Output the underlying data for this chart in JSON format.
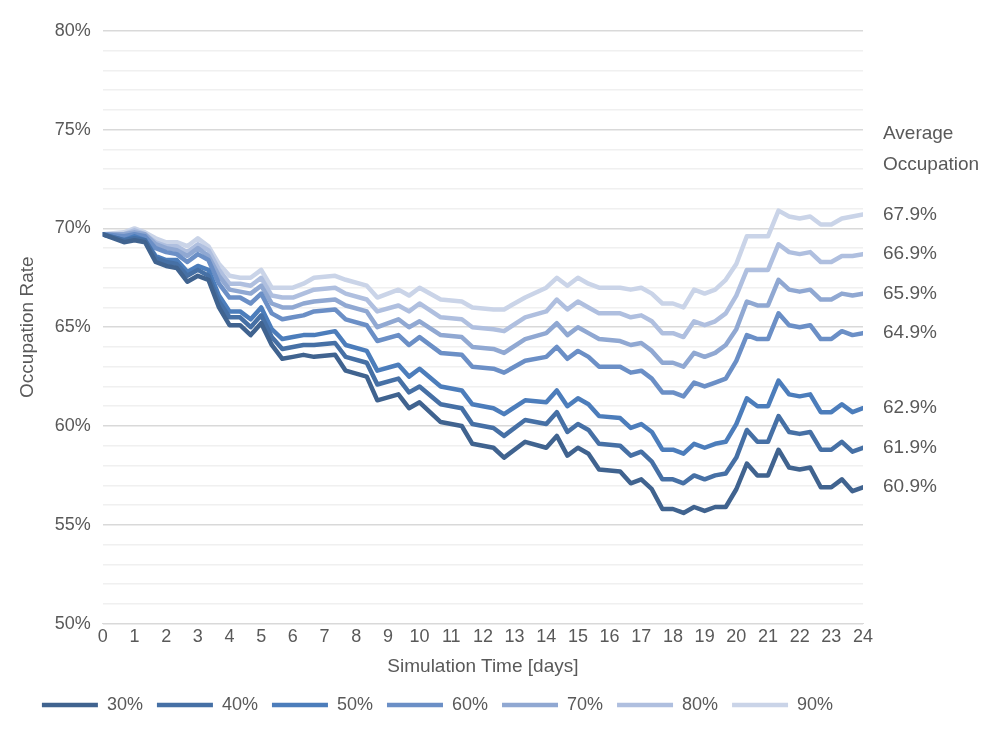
{
  "chart_data": {
    "type": "line",
    "xlabel": "Simulation Time [days]",
    "ylabel": "Occupation Rate",
    "x": [
      0,
      0.667,
      1,
      1.333,
      1.667,
      2,
      2.333,
      2.667,
      3,
      3.333,
      3.667,
      4,
      4.333,
      4.667,
      5,
      5.333,
      5.667,
      6,
      6.333,
      6.667,
      7.333,
      7.667,
      8.333,
      8.667,
      9.333,
      9.667,
      10,
      10.667,
      11.333,
      11.667,
      12.333,
      12.667,
      13.333,
      14,
      14.333,
      14.667,
      15,
      15.333,
      15.667,
      16.333,
      16.667,
      17,
      17.333,
      17.667,
      18,
      18.333,
      18.667,
      19,
      19.333,
      19.667,
      20,
      20.333,
      20.667,
      21,
      21.333,
      21.667,
      22,
      22.333,
      22.667,
      23,
      23.333,
      23.667,
      24
    ],
    "series": [
      {
        "name": "30%",
        "color": "#40638f",
        "values": [
          69.7,
          69.3,
          69.4,
          69.3,
          68.3,
          68.1,
          68.0,
          67.3,
          67.6,
          67.4,
          66.0,
          65.1,
          65.1,
          64.6,
          65.2,
          64.1,
          63.4,
          63.5,
          63.6,
          63.5,
          63.6,
          62.8,
          62.5,
          61.3,
          61.6,
          60.9,
          61.2,
          60.2,
          60.0,
          59.1,
          58.9,
          58.4,
          59.2,
          58.9,
          59.5,
          58.5,
          58.9,
          58.6,
          57.8,
          57.7,
          57.1,
          57.3,
          56.8,
          55.8,
          55.8,
          55.6,
          55.9,
          55.7,
          55.9,
          55.9,
          56.8,
          58.1,
          57.5,
          57.5,
          58.8,
          57.9,
          57.8,
          57.9,
          56.9,
          56.9,
          57.3,
          56.7,
          56.9
        ]
      },
      {
        "name": "40%",
        "color": "#4670a5",
        "values": [
          69.7,
          69.4,
          69.5,
          69.4,
          68.5,
          68.3,
          68.2,
          67.6,
          67.9,
          67.6,
          66.3,
          65.5,
          65.5,
          65.0,
          65.6,
          64.5,
          63.9,
          64.0,
          64.1,
          64.1,
          64.2,
          63.5,
          63.2,
          62.1,
          62.4,
          61.7,
          62.0,
          61.1,
          60.9,
          60.1,
          59.9,
          59.5,
          60.3,
          60.1,
          60.7,
          59.7,
          60.1,
          59.8,
          59.1,
          59.0,
          58.5,
          58.7,
          58.2,
          57.3,
          57.3,
          57.1,
          57.5,
          57.3,
          57.5,
          57.6,
          58.4,
          59.8,
          59.2,
          59.2,
          60.5,
          59.7,
          59.6,
          59.7,
          58.8,
          58.8,
          59.2,
          58.7,
          58.9
        ]
      },
      {
        "name": "50%",
        "color": "#4c7dbb",
        "values": [
          69.7,
          69.4,
          69.6,
          69.4,
          68.6,
          68.4,
          68.4,
          67.8,
          68.1,
          67.9,
          66.6,
          65.8,
          65.8,
          65.4,
          66.0,
          64.9,
          64.4,
          64.5,
          64.6,
          64.6,
          64.8,
          64.1,
          63.8,
          62.8,
          63.1,
          62.5,
          62.9,
          62.0,
          61.8,
          61.1,
          60.9,
          60.6,
          61.3,
          61.2,
          61.8,
          61.0,
          61.4,
          61.1,
          60.5,
          60.4,
          59.9,
          60.1,
          59.7,
          58.8,
          58.8,
          58.6,
          59.1,
          58.9,
          59.1,
          59.2,
          60.1,
          61.4,
          61.0,
          61.0,
          62.3,
          61.6,
          61.5,
          61.6,
          60.7,
          60.7,
          61.1,
          60.7,
          60.9
        ]
      },
      {
        "name": "60%",
        "color": "#6b8fc6",
        "values": [
          69.7,
          69.6,
          69.7,
          69.6,
          69.0,
          68.8,
          68.7,
          68.3,
          68.7,
          68.4,
          67.2,
          66.5,
          66.5,
          66.2,
          66.7,
          65.7,
          65.4,
          65.5,
          65.6,
          65.8,
          65.9,
          65.4,
          65.1,
          64.3,
          64.6,
          64.1,
          64.5,
          63.7,
          63.6,
          63.0,
          62.9,
          62.7,
          63.3,
          63.5,
          64.0,
          63.4,
          63.8,
          63.5,
          63.0,
          63.0,
          62.7,
          62.8,
          62.4,
          61.7,
          61.7,
          61.5,
          62.2,
          62.0,
          62.2,
          62.4,
          63.3,
          64.6,
          64.4,
          64.4,
          65.7,
          65.1,
          65.0,
          65.1,
          64.4,
          64.4,
          64.8,
          64.6,
          64.7
        ]
      },
      {
        "name": "70%",
        "color": "#90a8d2",
        "values": [
          69.7,
          69.7,
          69.8,
          69.7,
          69.2,
          69.0,
          68.9,
          68.6,
          69.0,
          68.6,
          67.6,
          66.9,
          66.8,
          66.7,
          67.1,
          66.2,
          66.0,
          66.0,
          66.2,
          66.3,
          66.4,
          66.1,
          65.8,
          65.0,
          65.4,
          65.0,
          65.3,
          64.6,
          64.5,
          64.0,
          63.9,
          63.7,
          64.4,
          64.7,
          65.2,
          64.6,
          65.0,
          64.7,
          64.4,
          64.3,
          64.1,
          64.2,
          63.8,
          63.2,
          63.2,
          63.0,
          63.7,
          63.5,
          63.7,
          64.1,
          64.9,
          66.3,
          66.1,
          66.1,
          67.4,
          66.9,
          66.8,
          66.9,
          66.4,
          66.4,
          66.7,
          66.6,
          66.7
        ]
      },
      {
        "name": "80%",
        "color": "#afbfdf",
        "values": [
          69.7,
          69.7,
          69.9,
          69.7,
          69.3,
          69.1,
          69.1,
          68.8,
          69.2,
          68.9,
          67.9,
          67.2,
          67.2,
          67.1,
          67.5,
          66.6,
          66.5,
          66.5,
          66.7,
          66.9,
          67.0,
          66.7,
          66.4,
          65.8,
          66.1,
          65.8,
          66.2,
          65.5,
          65.4,
          65.0,
          64.9,
          64.8,
          65.5,
          65.8,
          66.4,
          65.9,
          66.3,
          66.0,
          65.7,
          65.7,
          65.5,
          65.6,
          65.3,
          64.7,
          64.7,
          64.5,
          65.3,
          65.1,
          65.3,
          65.7,
          66.6,
          67.9,
          67.9,
          67.9,
          69.2,
          68.8,
          68.7,
          68.8,
          68.3,
          68.3,
          68.6,
          68.6,
          68.7
        ]
      },
      {
        "name": "90%",
        "color": "#cad4e8",
        "values": [
          69.7,
          69.8,
          70.0,
          69.8,
          69.5,
          69.3,
          69.3,
          69.1,
          69.5,
          69.1,
          68.2,
          67.6,
          67.5,
          67.5,
          67.9,
          67.0,
          67.0,
          67.0,
          67.2,
          67.5,
          67.6,
          67.4,
          67.1,
          66.5,
          66.9,
          66.6,
          67.0,
          66.4,
          66.3,
          66.0,
          65.9,
          65.9,
          66.5,
          67.0,
          67.5,
          67.1,
          67.5,
          67.2,
          67.0,
          67.0,
          66.9,
          67.0,
          66.7,
          66.2,
          66.2,
          66.0,
          66.9,
          66.7,
          66.9,
          67.4,
          68.2,
          69.6,
          69.6,
          69.6,
          70.9,
          70.6,
          70.5,
          70.6,
          70.2,
          70.2,
          70.5,
          70.6,
          70.7
        ]
      }
    ],
    "xlim": [
      0,
      24
    ],
    "xticks": [
      0,
      1,
      2,
      3,
      4,
      5,
      6,
      7,
      8,
      9,
      10,
      11,
      12,
      13,
      14,
      15,
      16,
      17,
      18,
      19,
      20,
      21,
      22,
      23,
      24
    ],
    "ylim": [
      50,
      80
    ],
    "yticks": [
      {
        "value": 50,
        "label": "50%"
      },
      {
        "value": 51,
        "label": null
      },
      {
        "value": 52,
        "label": null
      },
      {
        "value": 53,
        "label": null
      },
      {
        "value": 54,
        "label": null
      },
      {
        "value": 55,
        "label": "55%"
      },
      {
        "value": 56,
        "label": null
      },
      {
        "value": 57,
        "label": null
      },
      {
        "value": 58,
        "label": null
      },
      {
        "value": 59,
        "label": null
      },
      {
        "value": 60,
        "label": "60%"
      },
      {
        "value": 61,
        "label": null
      },
      {
        "value": 62,
        "label": null
      },
      {
        "value": 63,
        "label": null
      },
      {
        "value": 64,
        "label": null
      },
      {
        "value": 65,
        "label": "65%"
      },
      {
        "value": 66,
        "label": null
      },
      {
        "value": 67,
        "label": null
      },
      {
        "value": 68,
        "label": null
      },
      {
        "value": 69,
        "label": null
      },
      {
        "value": 70,
        "label": "70%"
      },
      {
        "value": 71,
        "label": null
      },
      {
        "value": 72,
        "label": null
      },
      {
        "value": 73,
        "label": null
      },
      {
        "value": 74,
        "label": null
      },
      {
        "value": 75,
        "label": "75%"
      },
      {
        "value": 76,
        "label": null
      },
      {
        "value": 77,
        "label": null
      },
      {
        "value": 78,
        "label": null
      },
      {
        "value": 79,
        "label": null
      },
      {
        "value": 80,
        "label": "80%"
      }
    ],
    "grid": "y",
    "legend": "bottom",
    "marker": "none",
    "line_style": "solid",
    "annotations": [
      "Average Occupation",
      "67.9%",
      "66.9%",
      "65.9%",
      "64.9%",
      "62.9%",
      "61.9%",
      "60.9%"
    ]
  }
}
